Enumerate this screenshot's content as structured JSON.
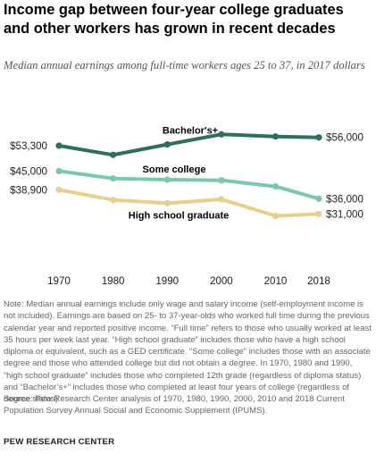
{
  "header": {
    "title": "Income gap between four-year college graduates and other workers has grown in recent decades",
    "subtitle": "Median annual earnings among full-time workers ages 25 to 37, in 2017 dollars"
  },
  "chart_data": {
    "type": "line",
    "title": "Income gap between four-year college graduates and other workers has grown in recent decades",
    "subtitle": "Median annual earnings among full-time workers ages 25 to 37, in 2017 dollars",
    "x": [
      1970,
      1980,
      1990,
      2000,
      2010,
      2018
    ],
    "x_tick_labels": [
      "1970",
      "1980",
      "1990",
      "2000",
      "2010",
      "2018"
    ],
    "ylim": [
      25000,
      60000
    ],
    "grid": false,
    "legend": "direct labels on lines",
    "series": [
      {
        "name": "Bachelor's+",
        "color": "#2f6f5e",
        "values": [
          53300,
          50300,
          53700,
          57000,
          56300,
          56000
        ],
        "start_label": "$53,300",
        "end_label": "$56,000"
      },
      {
        "name": "Some college",
        "color": "#7cc6b5",
        "values": [
          45000,
          42600,
          42200,
          42000,
          40000,
          36000
        ],
        "start_label": "$45,000",
        "end_label": "$36,000"
      },
      {
        "name": "High school graduate",
        "color": "#e7d08f",
        "values": [
          38900,
          35600,
          34500,
          35800,
          30400,
          31000
        ],
        "start_label": "$38,900",
        "end_label": "$31,000"
      }
    ]
  },
  "footer": {
    "note": "Note: Median annual earnings include only wage and salary income (self-employment income is not included). Earnings are based on 25- to 37-year-olds who worked full time during the previous calendar year and reported positive income. “Full time” refers to those who usually worked at least 35 hours per week last year. “High school graduate” includes those who have a high school diploma or equivalent, such as a GED certificate. “Some college” includes those with an associate degree and those who attended college but did not obtain a degree. In 1970, 1980 and 1990, “high school graduate” includes those who completed 12th grade (regardless of diploma status) and “Bachelor’s+” includes those who completed at least four years of college (regardless of degree status).",
    "source": "Source: Pew Research Center analysis of 1970, 1980, 1990, 2000, 2010 and 2018 Current Population Survey Annual Social and Economic Supplement (IPUMS).",
    "brand": "PEW RESEARCH CENTER"
  }
}
